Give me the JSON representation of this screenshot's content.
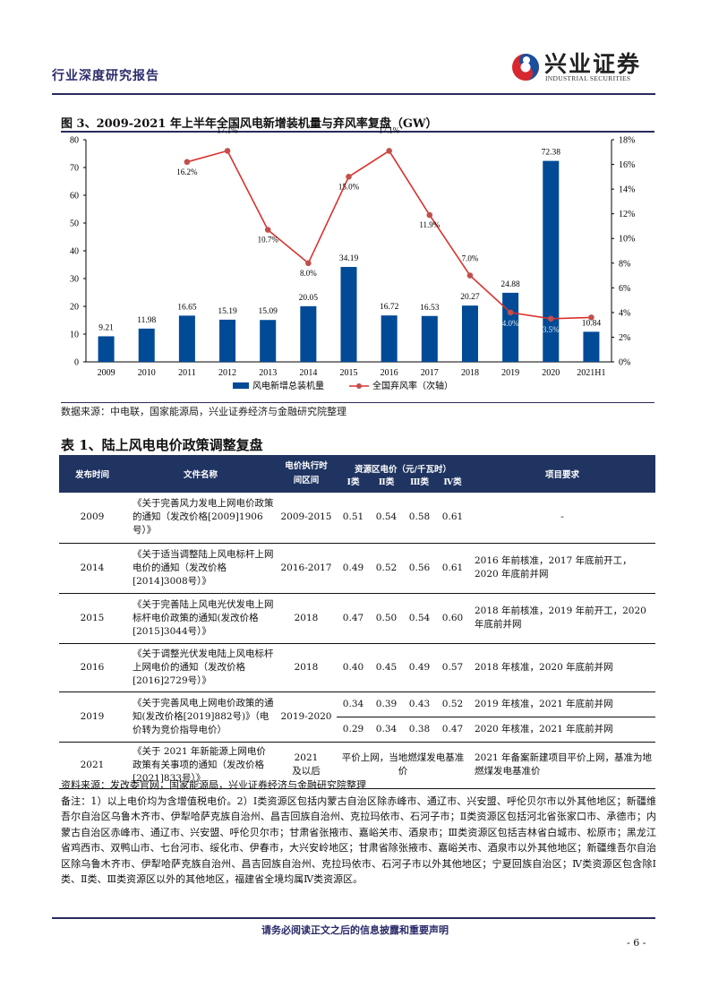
{
  "header": {
    "report_type": "行业深度研究报告",
    "logo_cn": "兴业证券",
    "logo_en": "INDUSTRIAL SECURITIES",
    "brand_colors": {
      "red": "#d7282f",
      "blue": "#1b4f9c",
      "navy": "#2a2a5c"
    }
  },
  "figure": {
    "title": "图 3、2009-2021 年上半年全国风电新增装机量与弃风率复盘（GW）",
    "source": "数据来源：中电联，国家能源局，兴业证券经济与金融研究院整理"
  },
  "chart_data": {
    "type": "bar+line",
    "title": "2009-2021 年上半年全国风电新增装机量与弃风率复盘（GW）",
    "categories": [
      "2009",
      "2010",
      "2011",
      "2012",
      "2013",
      "2014",
      "2015",
      "2016",
      "2017",
      "2018",
      "2019",
      "2020",
      "2021H1"
    ],
    "series": [
      {
        "name": "风电新增总装机量",
        "type": "bar",
        "axis": "primary",
        "color": "#004a96",
        "values": [
          9.21,
          11.98,
          16.65,
          15.19,
          15.09,
          20.05,
          34.19,
          16.72,
          16.53,
          20.27,
          24.88,
          72.38,
          10.84
        ],
        "labels": [
          "9.21",
          "11.98",
          "16.65",
          "15.19",
          "15.09",
          "20.05",
          "34.19",
          "16.72",
          "16.53",
          "20.27",
          "24.88",
          "72.38",
          "10.84"
        ]
      },
      {
        "name": "全国弃风率（次轴）",
        "type": "line",
        "axis": "secondary",
        "color": "#d9322e",
        "values": [
          null,
          null,
          16.2,
          17.1,
          10.7,
          8.0,
          15.0,
          17.1,
          11.9,
          7.0,
          4.0,
          3.5,
          3.6
        ],
        "labels": [
          "",
          "",
          "16.2%",
          "17.1%",
          "10.7%",
          "8.0%",
          "15.0%",
          "17.1%",
          "11.9%",
          "7.0%",
          "4.0%",
          "3.5%",
          ""
        ]
      }
    ],
    "y_left": {
      "min": 0,
      "max": 80,
      "ticks": [
        "0",
        "10",
        "20",
        "30",
        "40",
        "50",
        "60",
        "70",
        "80"
      ]
    },
    "y_right": {
      "min": 0,
      "max": 18,
      "ticks": [
        "0%",
        "2%",
        "4%",
        "6%",
        "8%",
        "10%",
        "12%",
        "14%",
        "16%",
        "18%"
      ]
    },
    "grid": false,
    "legend_position": "bottom-right",
    "legend": [
      "风电新增总装机量",
      "全国弃风率（次轴）"
    ]
  },
  "table": {
    "title": "表 1、陆上风电电价政策调整复盘",
    "headers": {
      "date": "发布时间",
      "doc": "文件名称",
      "period": "电价执行时间区间",
      "price_group": "资源区电价（元/千瓦时）",
      "c1": "Ⅰ类",
      "c2": "Ⅱ类",
      "c3": "Ⅲ类",
      "c4": "Ⅳ类",
      "req": "项目要求"
    },
    "rows": [
      {
        "date": "2009",
        "doc": "《关于完善风力发电上网电价政策的通知（发改价格[2009]1906号）》",
        "period": "2009-2015",
        "p": [
          "0.51",
          "0.54",
          "0.58",
          "0.61"
        ],
        "req": "-"
      },
      {
        "date": "2014",
        "doc": "《关于适当调整陆上风电标杆上网电价的通知（发改价格[2014]3008号）》",
        "period": "2016-2017",
        "p": [
          "0.49",
          "0.52",
          "0.56",
          "0.61"
        ],
        "req": "2016 年前核准，2017 年底前开工，2020 年底前并网"
      },
      {
        "date": "2015",
        "doc": "《关于完善陆上风电光伏发电上网标杆电价政策的通知(发改价格[2015]3044号）》",
        "period": "2018",
        "p": [
          "0.47",
          "0.50",
          "0.54",
          "0.60"
        ],
        "req": "2018 年前核准，2019 年前开工，2020 年底前并网"
      },
      {
        "date": "2016",
        "doc": "《关于调整光伏发电陆上风电标杆上网电价的通知（发改价格[2016]2729号）》",
        "period": "2018",
        "p": [
          "0.40",
          "0.45",
          "0.49",
          "0.57"
        ],
        "req": "2018 年核准，2020 年底前并网"
      },
      {
        "date": "2019",
        "doc": "《关于完善风电上网电价政策的通知(发改价格[2019]882号)》（电价转为竞价指导电价）",
        "period": "2019-2020",
        "sub": [
          {
            "p": [
              "0.34",
              "0.39",
              "0.43",
              "0.52"
            ],
            "req": "2019 年核准，2021 年底前并网"
          },
          {
            "p": [
              "0.29",
              "0.34",
              "0.38",
              "0.47"
            ],
            "req": "2020 年核准，2021 年底前并网"
          }
        ]
      },
      {
        "date": "2021",
        "doc": "《关于 2021 年新能源上网电价政策有关事项的通知（发改价格[2021]833号）》",
        "period": "2021 及以后",
        "price_text": "平价上网，当地燃煤发电基准价",
        "req": "2021 年备案新建项目平价上网，基准为地燃煤发电基准价"
      }
    ],
    "source": "资料来源：发改委官网，国家能源局，兴业证券经济与金融研究院整理",
    "note": "备注：1）以上电价均为含增值税电价。2）Ⅰ类资源区包括内蒙古自治区除赤峰市、通辽市、兴安盟、呼伦贝尔市以外其他地区；新疆维吾尔自治区乌鲁木齐市、伊犁哈萨克族自治州、昌吉回族自治州、克拉玛依市、石河子市；Ⅱ类资源区包括河北省张家口市、承德市；内蒙古自治区赤峰市、通辽市、兴安盟、呼伦贝尔市；甘肃省张掖市、嘉峪关市、酒泉市；Ⅲ类资源区包括吉林省白城市、松原市；黑龙江省鸡西市、双鸭山市、七台河市、绥化市、伊春市，大兴安岭地区；甘肃省除张掖市、嘉峪关市、酒泉市以外其他地区；新疆维吾尔自治区除乌鲁木齐市、伊犁哈萨克族自治州、昌吉回族自治州、克拉玛依市、石河子市以外其他地区；宁夏回族自治区；Ⅳ类资源区包含除Ⅰ类、Ⅱ类、Ⅲ类资源区以外的其他地区，福建省全境均属Ⅳ类资源区。"
  },
  "footer": {
    "disclaimer": "请务必阅读正文之后的信息披露和重要声明",
    "page": "- 6 -"
  }
}
